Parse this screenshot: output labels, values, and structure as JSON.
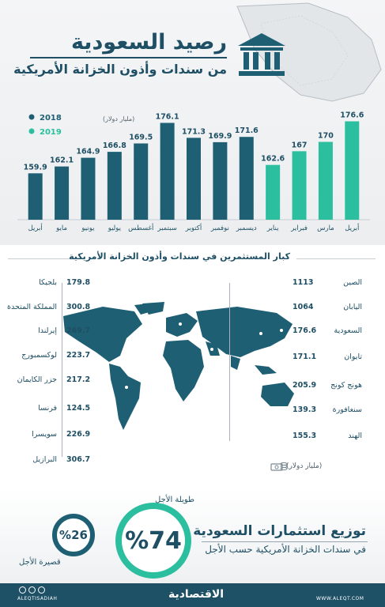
{
  "title": "رصيد السعودية",
  "subtitle": "من سندات وأذون الخزانة الأمريكية",
  "chart_data": {
    "type": "bar",
    "unit_label": "(مليار دولار)",
    "legend": [
      {
        "name": "2018",
        "color": "#1e5f74"
      },
      {
        "name": "2019",
        "color": "#2bbf9f"
      }
    ],
    "categories": [
      "أبريل",
      "مايو",
      "يونيو",
      "يوليو",
      "أغسطس",
      "سبتمبر",
      "أكتوبر",
      "نوفمبر",
      "ديسمبر",
      "يناير",
      "فبراير",
      "مارس",
      "أبريل"
    ],
    "values": [
      159.9,
      162.1,
      164.9,
      166.8,
      169.5,
      176.1,
      171.3,
      169.9,
      171.6,
      162.6,
      167,
      170,
      176.6
    ],
    "value_labels": [
      "159.9",
      "162.1",
      "164.9",
      "166.8",
      "169.5",
      "176.1",
      "171.3",
      "169.9",
      "171.6",
      "162.6",
      "167",
      "170",
      "176.6"
    ],
    "years": [
      "2018",
      "2018",
      "2018",
      "2018",
      "2018",
      "2018",
      "2018",
      "2018",
      "2018",
      "2019",
      "2019",
      "2019",
      "2019"
    ],
    "legend_position": "top-left"
  },
  "holders": {
    "title": "كبار المستثمرين في سندات وأذون الخزانة الأمريكية",
    "unit_label": "(مليار دولار)",
    "left": [
      {
        "name": "بلجيكا",
        "value": "179.8"
      },
      {
        "name": "المملكة المتحدة",
        "value": "300.8"
      },
      {
        "name": "إيرلندا",
        "value": "269.7"
      },
      {
        "name": "لوكسمبورج",
        "value": "223.7"
      },
      {
        "name": "جزر الكايمان",
        "value": "217.2"
      },
      {
        "name": "فرنسا",
        "value": "124.5"
      },
      {
        "name": "سويسرا",
        "value": "226.9"
      },
      {
        "name": "البرازيل",
        "value": "306.7"
      }
    ],
    "right": [
      {
        "name": "الصين",
        "value": "1113"
      },
      {
        "name": "اليابان",
        "value": "1064"
      },
      {
        "name": "السعودية",
        "value": "176.6"
      },
      {
        "name": "تايوان",
        "value": "171.1"
      },
      {
        "name": "هونج كونج",
        "value": "205.9"
      },
      {
        "name": "سنغافورة",
        "value": "139.3"
      },
      {
        "name": "الهند",
        "value": "155.3"
      }
    ]
  },
  "distribution": {
    "title": "توزيع استثمارات السعودية",
    "subtitle": "في سندات الخزانة الأمريكية حسب الأجل",
    "long_term": {
      "label": "طويلة الأجل",
      "value": "%74",
      "fraction": 0.74
    },
    "short_term": {
      "label": "قصيرة الأجل",
      "value": "%26",
      "fraction": 0.26
    }
  },
  "footer": {
    "brand": "الاقتصادية",
    "handle": "ALEQTISADIAH",
    "site": "WWW.ALEQT.COM"
  },
  "colors": {
    "dark": "#1e5f74",
    "teal": "#2bbf9f",
    "text": "#1e4f64",
    "footer": "#1e5066"
  }
}
